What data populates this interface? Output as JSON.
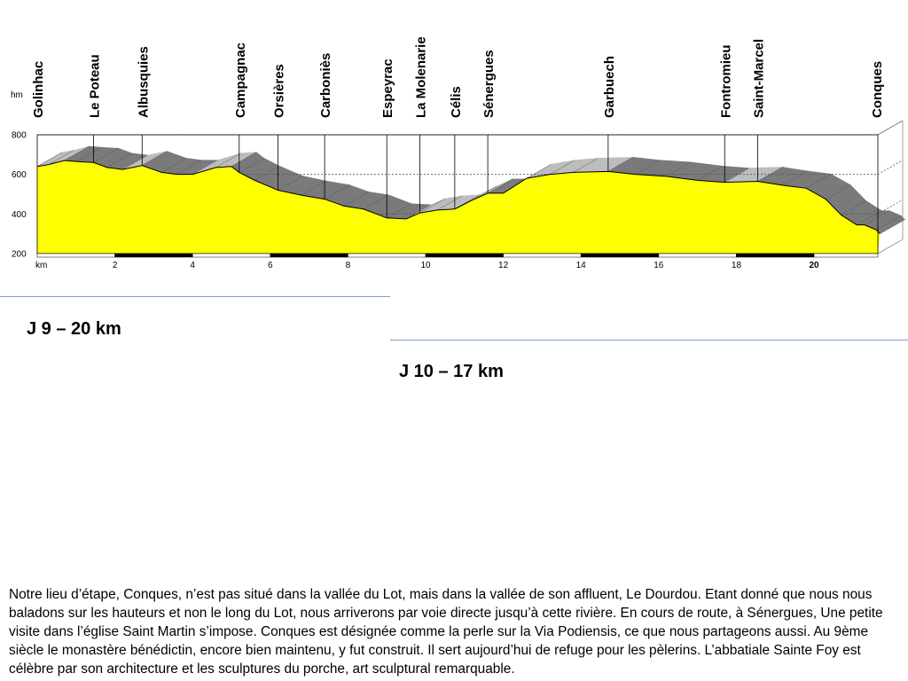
{
  "chart_data": {
    "type": "area",
    "xlabel": "km",
    "ylabel": "hm",
    "xlim": [
      0,
      21.7
    ],
    "ylim": [
      200,
      800
    ],
    "x_ticks": [
      2,
      4,
      6,
      8,
      10,
      12,
      14,
      16,
      18,
      20
    ],
    "y_ticks": [
      200,
      400,
      600,
      800
    ],
    "grid": "dashed",
    "colors": {
      "profile": "#ffff00",
      "terrain_dark": "#7a7a7a",
      "terrain_light": "#bdbdbd",
      "axis": "#000000"
    },
    "places": [
      {
        "name": "Golinhac",
        "km": 0.0
      },
      {
        "name": "Le Poteau",
        "km": 1.45
      },
      {
        "name": "Albusquies",
        "km": 2.7
      },
      {
        "name": "Campagnac",
        "km": 5.2
      },
      {
        "name": "Orsières",
        "km": 6.2
      },
      {
        "name": "Carboniès",
        "km": 7.4
      },
      {
        "name": "Espeyrac",
        "km": 9.0
      },
      {
        "name": "La Molenarie",
        "km": 9.85
      },
      {
        "name": "Célis",
        "km": 10.75
      },
      {
        "name": "Sénergues",
        "km": 11.6
      },
      {
        "name": "Garbuech",
        "km": 14.7
      },
      {
        "name": "Fontromieu",
        "km": 17.7
      },
      {
        "name": "Saint-Marcel",
        "km": 18.55
      },
      {
        "name": "Conques",
        "km": 21.6
      }
    ],
    "series": [
      {
        "x": [
          0,
          0.3,
          0.7,
          1.0,
          1.45,
          1.8,
          2.2,
          2.7,
          3.2,
          3.6,
          4.0,
          4.6,
          5.0,
          5.2,
          5.6,
          6.2,
          6.8,
          7.4,
          7.9,
          8.4,
          9.0,
          9.5,
          9.85,
          10.3,
          10.75,
          11.2,
          11.6,
          12.0,
          12.6,
          13.2,
          13.8,
          14.7,
          15.4,
          16.2,
          17.0,
          17.7,
          18.55,
          19.2,
          19.8,
          20.3,
          20.7,
          21.1,
          21.3,
          21.6,
          21.7
        ],
        "values": [
          640,
          650,
          670,
          665,
          660,
          635,
          625,
          645,
          610,
          600,
          600,
          635,
          640,
          610,
          570,
          520,
          495,
          475,
          440,
          425,
          380,
          375,
          405,
          420,
          425,
          470,
          505,
          505,
          580,
          600,
          610,
          615,
          600,
          590,
          570,
          560,
          565,
          545,
          530,
          475,
          395,
          345,
          345,
          320,
          300
        ]
      }
    ]
  },
  "stages": {
    "j9": "J 9 – 20 km",
    "j10": "J 10 – 17 km"
  },
  "description": "Notre lieu d’étape, Conques, n’est pas situé dans la vallée du Lot, mais dans la vallée de son affluent, Le Dourdou. Etant donné que nous nous baladons sur les hauteurs et non le long du Lot, nous arriverons par voie directe jusqu’à cette rivière. En cours de route, à Sénergues, Une petite visite dans l’église Saint Martin s’impose. Conques est désignée comme la perle sur la Via Podiensis, ce que nous partageons aussi. Au 9ème siècle le monastère bénédictin, encore bien maintenu, y fut construit. Il sert aujourd’hui de refuge pour les pèlerins. L’abbatiale Sainte Foy est célèbre par son architecture et les sculptures du porche, art sculptural remarquable."
}
